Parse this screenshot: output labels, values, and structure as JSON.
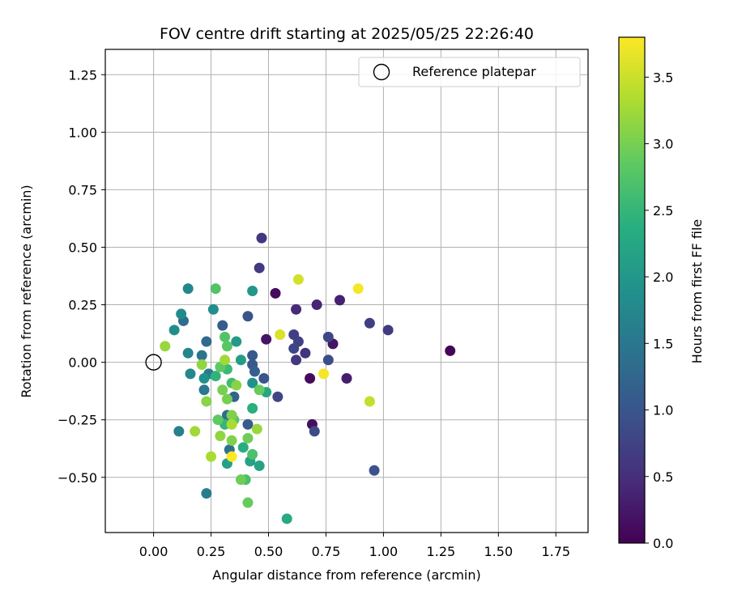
{
  "chart_data": {
    "type": "scatter",
    "title": "FOV centre drift starting at 2025/05/25 22:26:40",
    "xlabel": "Angular distance from reference (arcmin)",
    "ylabel": "Rotation from reference (arcmin)",
    "colorbar_label": "Hours from first FF file",
    "colormap": "viridis",
    "xlim": [
      -0.21,
      1.89
    ],
    "ylim": [
      -0.74,
      1.36
    ],
    "clim": [
      0.0,
      3.8
    ],
    "x_ticks": [
      0.0,
      0.25,
      0.5,
      0.75,
      1.0,
      1.25,
      1.5,
      1.75
    ],
    "x_tick_labels": [
      "0.00",
      "0.25",
      "0.50",
      "0.75",
      "1.00",
      "1.25",
      "1.50",
      "1.75"
    ],
    "y_ticks": [
      -0.5,
      -0.25,
      0.0,
      0.25,
      0.5,
      0.75,
      1.0,
      1.25
    ],
    "y_tick_labels": [
      "−0.50",
      "−0.25",
      "0.00",
      "0.25",
      "0.50",
      "0.75",
      "1.00",
      "1.25"
    ],
    "colorbar_ticks": [
      0.0,
      0.5,
      1.0,
      1.5,
      2.0,
      2.5,
      3.0,
      3.5
    ],
    "colorbar_tick_labels": [
      "0.0",
      "0.5",
      "1.0",
      "1.5",
      "2.0",
      "2.5",
      "3.0",
      "3.5"
    ],
    "grid": true,
    "legend": {
      "placement": "top-right",
      "entries": [
        "Reference platepar"
      ]
    },
    "reference_point": {
      "x": 0.0,
      "y": 0.0,
      "label": "Reference platepar"
    },
    "points": [
      {
        "x": 1.29,
        "y": 0.05,
        "t": 0.05
      },
      {
        "x": 0.53,
        "y": 0.3,
        "t": 0.1
      },
      {
        "x": 0.68,
        "y": -0.07,
        "t": 0.1
      },
      {
        "x": 0.69,
        "y": -0.27,
        "t": 0.15
      },
      {
        "x": 0.49,
        "y": 0.1,
        "t": 0.2
      },
      {
        "x": 0.78,
        "y": 0.08,
        "t": 0.2
      },
      {
        "x": 0.84,
        "y": -0.07,
        "t": 0.3
      },
      {
        "x": 0.81,
        "y": 0.27,
        "t": 0.35
      },
      {
        "x": 0.71,
        "y": 0.25,
        "t": 0.4
      },
      {
        "x": 0.62,
        "y": 0.23,
        "t": 0.45
      },
      {
        "x": 0.66,
        "y": 0.04,
        "t": 0.55
      },
      {
        "x": 0.62,
        "y": 0.01,
        "t": 0.6
      },
      {
        "x": 0.47,
        "y": 0.54,
        "t": 0.6
      },
      {
        "x": 0.46,
        "y": 0.41,
        "t": 0.65
      },
      {
        "x": 1.02,
        "y": 0.14,
        "t": 0.65
      },
      {
        "x": 0.94,
        "y": 0.17,
        "t": 0.7
      },
      {
        "x": 0.61,
        "y": 0.12,
        "t": 0.7
      },
      {
        "x": 0.63,
        "y": 0.09,
        "t": 0.75
      },
      {
        "x": 0.61,
        "y": 0.06,
        "t": 0.8
      },
      {
        "x": 0.76,
        "y": 0.11,
        "t": 0.8
      },
      {
        "x": 0.54,
        "y": -0.15,
        "t": 0.8
      },
      {
        "x": 0.7,
        "y": -0.3,
        "t": 0.85
      },
      {
        "x": 0.76,
        "y": 0.01,
        "t": 0.9
      },
      {
        "x": 0.96,
        "y": -0.47,
        "t": 0.95
      },
      {
        "x": 0.41,
        "y": 0.2,
        "t": 1.0
      },
      {
        "x": 0.48,
        "y": -0.07,
        "t": 1.0
      },
      {
        "x": 0.43,
        "y": 0.03,
        "t": 1.05
      },
      {
        "x": 0.43,
        "y": -0.01,
        "t": 1.05
      },
      {
        "x": 0.3,
        "y": 0.16,
        "t": 1.1
      },
      {
        "x": 0.41,
        "y": -0.27,
        "t": 1.1
      },
      {
        "x": 0.44,
        "y": -0.04,
        "t": 1.15
      },
      {
        "x": 0.35,
        "y": -0.15,
        "t": 1.2
      },
      {
        "x": 0.23,
        "y": 0.09,
        "t": 1.3
      },
      {
        "x": 0.13,
        "y": 0.18,
        "t": 1.35
      },
      {
        "x": 0.32,
        "y": -0.23,
        "t": 1.35
      },
      {
        "x": 0.33,
        "y": -0.38,
        "t": 1.4
      },
      {
        "x": 0.21,
        "y": 0.03,
        "t": 1.45
      },
      {
        "x": 0.22,
        "y": -0.12,
        "t": 1.5
      },
      {
        "x": 0.24,
        "y": -0.05,
        "t": 1.55
      },
      {
        "x": 0.23,
        "y": -0.57,
        "t": 1.6
      },
      {
        "x": 0.11,
        "y": -0.3,
        "t": 1.65
      },
      {
        "x": 0.15,
        "y": 0.04,
        "t": 1.7
      },
      {
        "x": 0.16,
        "y": -0.05,
        "t": 1.75
      },
      {
        "x": 0.15,
        "y": 0.32,
        "t": 1.75
      },
      {
        "x": 0.12,
        "y": 0.21,
        "t": 1.8
      },
      {
        "x": 0.09,
        "y": 0.14,
        "t": 1.85
      },
      {
        "x": 0.26,
        "y": 0.23,
        "t": 1.85
      },
      {
        "x": 0.22,
        "y": -0.07,
        "t": 1.9
      },
      {
        "x": 0.43,
        "y": -0.09,
        "t": 1.9
      },
      {
        "x": 0.43,
        "y": 0.31,
        "t": 2.0
      },
      {
        "x": 0.36,
        "y": 0.09,
        "t": 2.05
      },
      {
        "x": 0.38,
        "y": 0.01,
        "t": 2.1
      },
      {
        "x": 0.32,
        "y": -0.44,
        "t": 2.15
      },
      {
        "x": 0.46,
        "y": -0.45,
        "t": 2.2
      },
      {
        "x": 0.42,
        "y": -0.43,
        "t": 2.2
      },
      {
        "x": 0.49,
        "y": -0.13,
        "t": 2.25
      },
      {
        "x": 0.58,
        "y": -0.68,
        "t": 2.3
      },
      {
        "x": 0.39,
        "y": -0.37,
        "t": 2.35
      },
      {
        "x": 0.43,
        "y": -0.2,
        "t": 2.4
      },
      {
        "x": 0.27,
        "y": -0.06,
        "t": 2.45
      },
      {
        "x": 0.31,
        "y": -0.27,
        "t": 2.5
      },
      {
        "x": 0.32,
        "y": -0.03,
        "t": 2.55
      },
      {
        "x": 0.34,
        "y": -0.09,
        "t": 2.6
      },
      {
        "x": 0.4,
        "y": -0.51,
        "t": 2.65
      },
      {
        "x": 0.43,
        "y": -0.4,
        "t": 2.7
      },
      {
        "x": 0.27,
        "y": 0.32,
        "t": 2.75
      },
      {
        "x": 0.31,
        "y": 0.11,
        "t": 2.75
      },
      {
        "x": 0.32,
        "y": 0.07,
        "t": 2.8
      },
      {
        "x": 0.35,
        "y": -0.25,
        "t": 2.8
      },
      {
        "x": 0.28,
        "y": -0.25,
        "t": 2.85
      },
      {
        "x": 0.29,
        "y": -0.02,
        "t": 2.85
      },
      {
        "x": 0.41,
        "y": -0.61,
        "t": 2.9
      },
      {
        "x": 0.46,
        "y": -0.12,
        "t": 2.9
      },
      {
        "x": 0.38,
        "y": -0.51,
        "t": 2.95
      },
      {
        "x": 0.41,
        "y": -0.33,
        "t": 2.95
      },
      {
        "x": 0.3,
        "y": -0.12,
        "t": 3.0
      },
      {
        "x": 0.32,
        "y": -0.16,
        "t": 3.0
      },
      {
        "x": 0.34,
        "y": -0.34,
        "t": 3.05
      },
      {
        "x": 0.34,
        "y": -0.23,
        "t": 3.05
      },
      {
        "x": 0.23,
        "y": -0.17,
        "t": 3.1
      },
      {
        "x": 0.36,
        "y": -0.1,
        "t": 3.1
      },
      {
        "x": 0.21,
        "y": -0.01,
        "t": 3.15
      },
      {
        "x": 0.29,
        "y": -0.32,
        "t": 3.15
      },
      {
        "x": 0.45,
        "y": -0.29,
        "t": 3.2
      },
      {
        "x": 0.05,
        "y": 0.07,
        "t": 3.2
      },
      {
        "x": 0.18,
        "y": -0.3,
        "t": 3.25
      },
      {
        "x": 0.31,
        "y": 0.01,
        "t": 3.25
      },
      {
        "x": 0.25,
        "y": -0.41,
        "t": 3.3
      },
      {
        "x": 0.34,
        "y": -0.27,
        "t": 3.3
      },
      {
        "x": 0.94,
        "y": -0.17,
        "t": 3.45
      },
      {
        "x": 0.63,
        "y": 0.36,
        "t": 3.55
      },
      {
        "x": 0.55,
        "y": 0.12,
        "t": 3.6
      },
      {
        "x": 0.74,
        "y": -0.05,
        "t": 3.75
      },
      {
        "x": 0.89,
        "y": 0.32,
        "t": 3.75
      },
      {
        "x": 0.34,
        "y": -0.41,
        "t": 3.8
      }
    ]
  }
}
